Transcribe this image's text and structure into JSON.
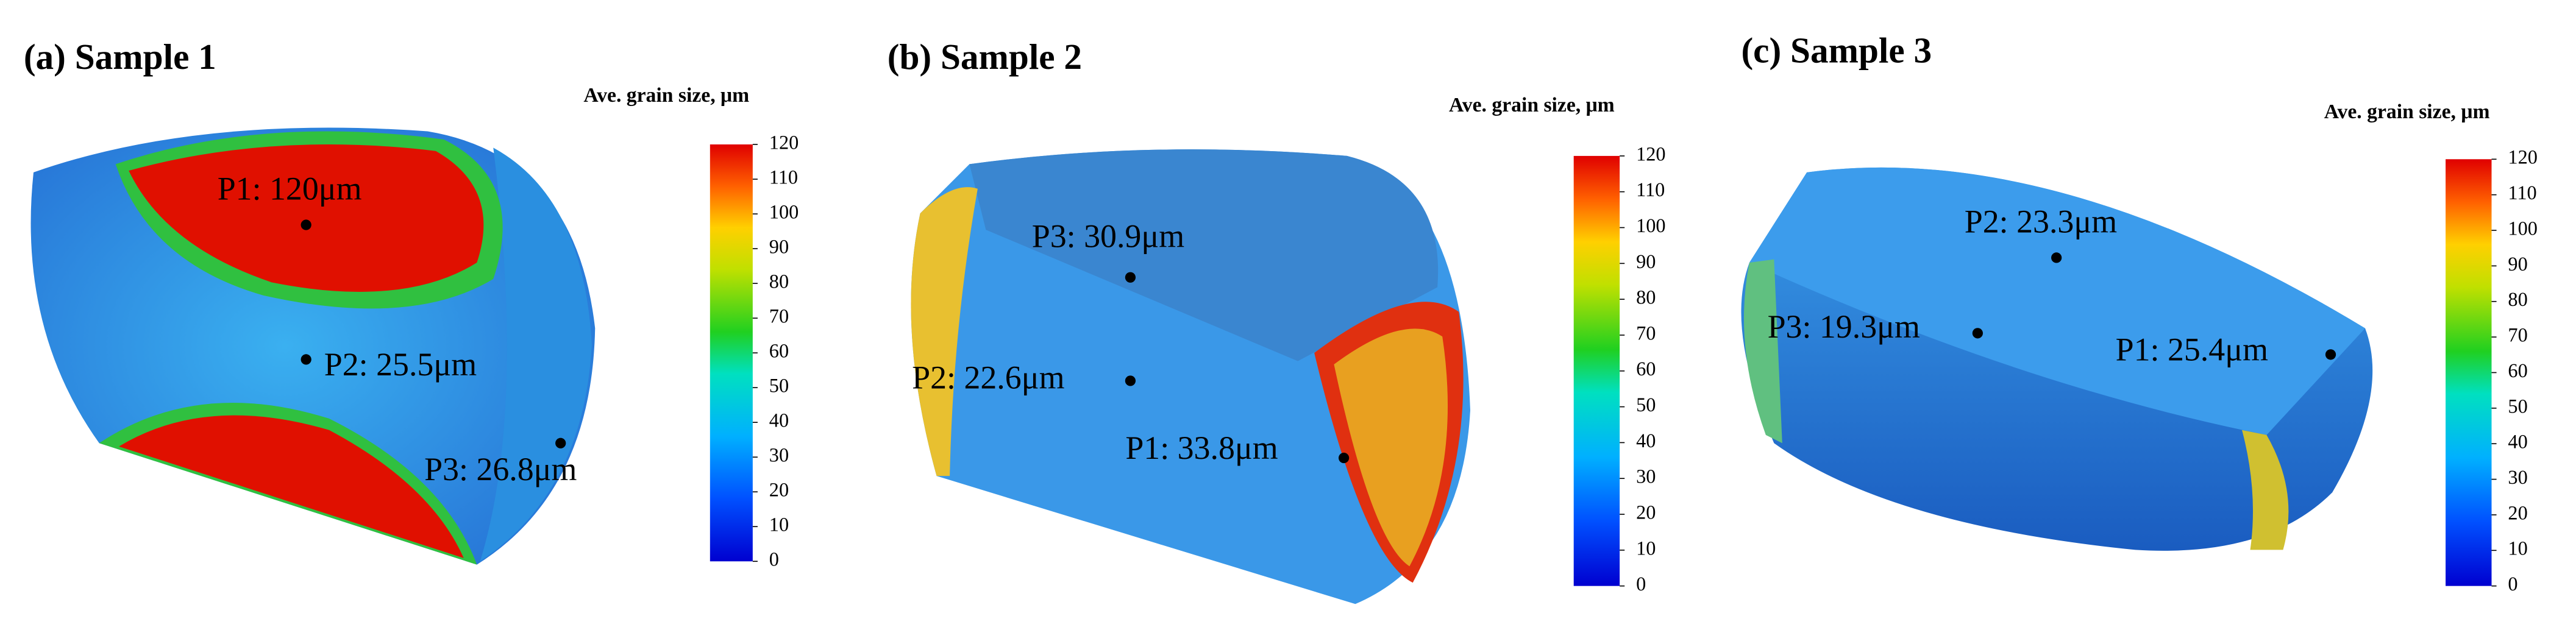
{
  "panels": [
    {
      "title": "(a) Sample 1",
      "colorbar": {
        "title": "Ave. grain size, μm",
        "ticks": [
          0,
          10,
          20,
          30,
          40,
          50,
          60,
          70,
          80,
          90,
          100,
          110,
          120
        ]
      },
      "points": [
        {
          "label": "P1: 120μm"
        },
        {
          "label": "P2: 25.5μm"
        },
        {
          "label": "P3: 26.8μm"
        }
      ]
    },
    {
      "title": "(b) Sample 2",
      "colorbar": {
        "title": "Ave. grain size, μm",
        "ticks": [
          0,
          10,
          20,
          30,
          40,
          50,
          60,
          70,
          80,
          90,
          100,
          110,
          120
        ]
      },
      "points": [
        {
          "label": "P3: 30.9μm"
        },
        {
          "label": "P2: 22.6μm"
        },
        {
          "label": "P1: 33.8μm"
        }
      ]
    },
    {
      "title": "(c) Sample 3",
      "colorbar": {
        "title": "Ave. grain size, μm",
        "ticks": [
          0,
          10,
          20,
          30,
          40,
          50,
          60,
          70,
          80,
          90,
          100,
          110,
          120
        ]
      },
      "points": [
        {
          "label": "P2: 23.3μm"
        },
        {
          "label": "P3: 19.3μm"
        },
        {
          "label": "P1: 25.4μm"
        }
      ]
    }
  ]
}
